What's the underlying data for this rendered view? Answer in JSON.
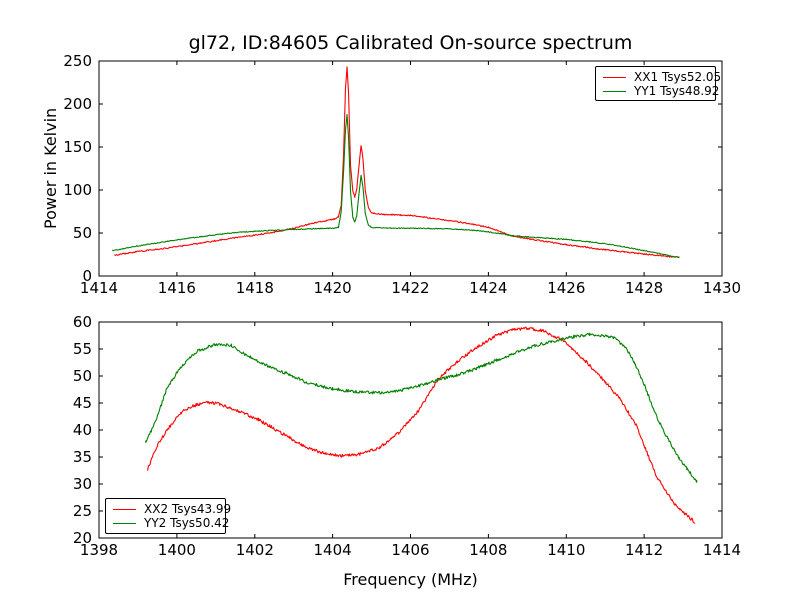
{
  "chart_data": [
    {
      "type": "line",
      "title": "gl72, ID:84605 Calibrated On-source spectrum",
      "ylabel": "Power in Kelvin",
      "xlabel": "",
      "xlim": [
        1414,
        1430
      ],
      "ylim": [
        0,
        250
      ],
      "xticks": [
        1414,
        1416,
        1418,
        1420,
        1422,
        1424,
        1426,
        1428,
        1430
      ],
      "yticks": [
        0,
        50,
        100,
        150,
        200,
        250
      ],
      "grid": false,
      "legend_position": "upper right",
      "series": [
        {
          "name": "XX1 Tsys52.05",
          "color": "#ff0000",
          "noise": 0.7,
          "points": [
            [
              1414.4,
              24.0
            ],
            [
              1415.0,
              28.5
            ],
            [
              1415.5,
              31.0
            ],
            [
              1416.0,
              34.0
            ],
            [
              1416.5,
              37.5
            ],
            [
              1417.0,
              41.0
            ],
            [
              1417.5,
              44.5
            ],
            [
              1418.0,
              47.5
            ],
            [
              1418.5,
              51.0
            ],
            [
              1419.0,
              55.5
            ],
            [
              1419.4,
              60.5
            ],
            [
              1419.8,
              64.0
            ],
            [
              1420.05,
              66.5
            ],
            [
              1420.15,
              69.0
            ],
            [
              1420.22,
              82.0
            ],
            [
              1420.28,
              140.0
            ],
            [
              1420.33,
              218.0
            ],
            [
              1420.37,
              243.0
            ],
            [
              1420.41,
              212.0
            ],
            [
              1420.46,
              128.0
            ],
            [
              1420.52,
              98.0
            ],
            [
              1420.57,
              92.0
            ],
            [
              1420.62,
              101.0
            ],
            [
              1420.68,
              129.0
            ],
            [
              1420.73,
              152.0
            ],
            [
              1420.78,
              136.0
            ],
            [
              1420.84,
              99.0
            ],
            [
              1420.92,
              79.0
            ],
            [
              1421.0,
              73.5
            ],
            [
              1421.3,
              71.5
            ],
            [
              1421.7,
              71.0
            ],
            [
              1422.0,
              70.5
            ],
            [
              1422.5,
              67.5
            ],
            [
              1423.0,
              64.5
            ],
            [
              1423.5,
              61.0
            ],
            [
              1424.0,
              56.5
            ],
            [
              1424.6,
              47.0
            ],
            [
              1425.0,
              43.5
            ],
            [
              1425.5,
              40.0
            ],
            [
              1426.0,
              36.5
            ],
            [
              1426.5,
              33.5
            ],
            [
              1427.0,
              30.5
            ],
            [
              1427.5,
              28.0
            ],
            [
              1428.0,
              25.5
            ],
            [
              1428.5,
              23.2
            ],
            [
              1428.9,
              21.5
            ]
          ]
        },
        {
          "name": "YY1 Tsys48.92",
          "color": "#008000",
          "noise": 0.5,
          "points": [
            [
              1414.35,
              29.5
            ],
            [
              1415.0,
              35.0
            ],
            [
              1415.5,
              38.5
            ],
            [
              1416.0,
              42.0
            ],
            [
              1416.5,
              45.0
            ],
            [
              1417.0,
              48.0
            ],
            [
              1417.5,
              50.5
            ],
            [
              1418.0,
              52.0
            ],
            [
              1418.5,
              53.2
            ],
            [
              1419.0,
              54.2
            ],
            [
              1419.5,
              55.0
            ],
            [
              1420.0,
              55.6
            ],
            [
              1420.15,
              56.5
            ],
            [
              1420.22,
              75.0
            ],
            [
              1420.28,
              120.0
            ],
            [
              1420.33,
              170.0
            ],
            [
              1420.37,
              188.0
            ],
            [
              1420.41,
              160.0
            ],
            [
              1420.46,
              98.0
            ],
            [
              1420.52,
              68.0
            ],
            [
              1420.57,
              63.0
            ],
            [
              1420.62,
              70.0
            ],
            [
              1420.68,
              97.0
            ],
            [
              1420.73,
              117.0
            ],
            [
              1420.78,
              103.0
            ],
            [
              1420.84,
              72.0
            ],
            [
              1420.92,
              59.0
            ],
            [
              1421.0,
              56.5
            ],
            [
              1421.5,
              55.8
            ],
            [
              1422.0,
              55.5
            ],
            [
              1422.5,
              55.2
            ],
            [
              1423.0,
              54.8
            ],
            [
              1423.5,
              53.5
            ],
            [
              1424.0,
              51.5
            ],
            [
              1424.6,
              47.0
            ],
            [
              1425.0,
              45.5
            ],
            [
              1425.5,
              44.0
            ],
            [
              1426.0,
              42.5
            ],
            [
              1426.5,
              40.2
            ],
            [
              1427.0,
              37.5
            ],
            [
              1427.5,
              33.8
            ],
            [
              1428.0,
              29.5
            ],
            [
              1428.5,
              25.0
            ],
            [
              1428.9,
              21.5
            ]
          ]
        }
      ]
    },
    {
      "type": "line",
      "title": "",
      "ylabel": "",
      "xlabel": "Frequency (MHz)",
      "xlim": [
        1398,
        1414
      ],
      "ylim": [
        20,
        60
      ],
      "xticks": [
        1398,
        1400,
        1402,
        1404,
        1406,
        1408,
        1410,
        1412,
        1414
      ],
      "yticks": [
        20,
        25,
        30,
        35,
        40,
        45,
        50,
        55,
        60
      ],
      "grid": false,
      "legend_position": "lower left",
      "series": [
        {
          "name": "XX2 Tsys43.99",
          "color": "#ff0000",
          "noise": 0.28,
          "points": [
            [
              1399.25,
              32.8
            ],
            [
              1399.5,
              37.2
            ],
            [
              1399.8,
              40.5
            ],
            [
              1400.1,
              43.2
            ],
            [
              1400.4,
              44.5
            ],
            [
              1400.8,
              45.1
            ],
            [
              1401.1,
              44.8
            ],
            [
              1401.6,
              43.5
            ],
            [
              1402.1,
              41.9
            ],
            [
              1402.7,
              39.4
            ],
            [
              1403.2,
              37.2
            ],
            [
              1403.7,
              35.8
            ],
            [
              1404.2,
              35.2
            ],
            [
              1404.7,
              35.5
            ],
            [
              1405.2,
              36.7
            ],
            [
              1405.7,
              39.5
            ],
            [
              1406.2,
              43.5
            ],
            [
              1406.7,
              49.3
            ],
            [
              1407.2,
              52.7
            ],
            [
              1407.7,
              55.3
            ],
            [
              1408.2,
              57.5
            ],
            [
              1408.6,
              58.5
            ],
            [
              1409.0,
              58.9
            ],
            [
              1409.4,
              58.4
            ],
            [
              1409.9,
              56.7
            ],
            [
              1410.5,
              52.7
            ],
            [
              1411.0,
              48.9
            ],
            [
              1411.4,
              45.6
            ],
            [
              1411.8,
              40.8
            ],
            [
              1412.05,
              36.2
            ],
            [
              1412.3,
              31.7
            ],
            [
              1412.8,
              26.1
            ],
            [
              1413.05,
              24.5
            ],
            [
              1413.3,
              22.9
            ]
          ]
        },
        {
          "name": "YY2 Tsys50.42",
          "color": "#008000",
          "noise": 0.28,
          "points": [
            [
              1399.2,
              37.8
            ],
            [
              1399.45,
              41.5
            ],
            [
              1399.75,
              47.8
            ],
            [
              1400.1,
              51.7
            ],
            [
              1400.5,
              54.5
            ],
            [
              1401.0,
              55.9
            ],
            [
              1401.4,
              55.7
            ],
            [
              1401.7,
              54.2
            ],
            [
              1402.3,
              52.0
            ],
            [
              1402.8,
              50.5
            ],
            [
              1403.3,
              48.9
            ],
            [
              1404.0,
              47.6
            ],
            [
              1404.6,
              47.1
            ],
            [
              1405.2,
              46.9
            ],
            [
              1405.7,
              47.3
            ],
            [
              1406.2,
              48.1
            ],
            [
              1406.7,
              49.3
            ],
            [
              1407.2,
              50.2
            ],
            [
              1407.7,
              51.4
            ],
            [
              1408.2,
              52.9
            ],
            [
              1408.7,
              54.3
            ],
            [
              1409.2,
              55.6
            ],
            [
              1409.7,
              56.5
            ],
            [
              1410.2,
              57.3
            ],
            [
              1410.6,
              57.7
            ],
            [
              1411.2,
              57.2
            ],
            [
              1411.5,
              55.5
            ],
            [
              1411.75,
              52.5
            ],
            [
              1412.0,
              48.5
            ],
            [
              1412.3,
              42.8
            ],
            [
              1412.6,
              38.5
            ],
            [
              1412.9,
              34.8
            ],
            [
              1413.1,
              32.8
            ],
            [
              1413.35,
              30.5
            ]
          ]
        }
      ]
    }
  ]
}
